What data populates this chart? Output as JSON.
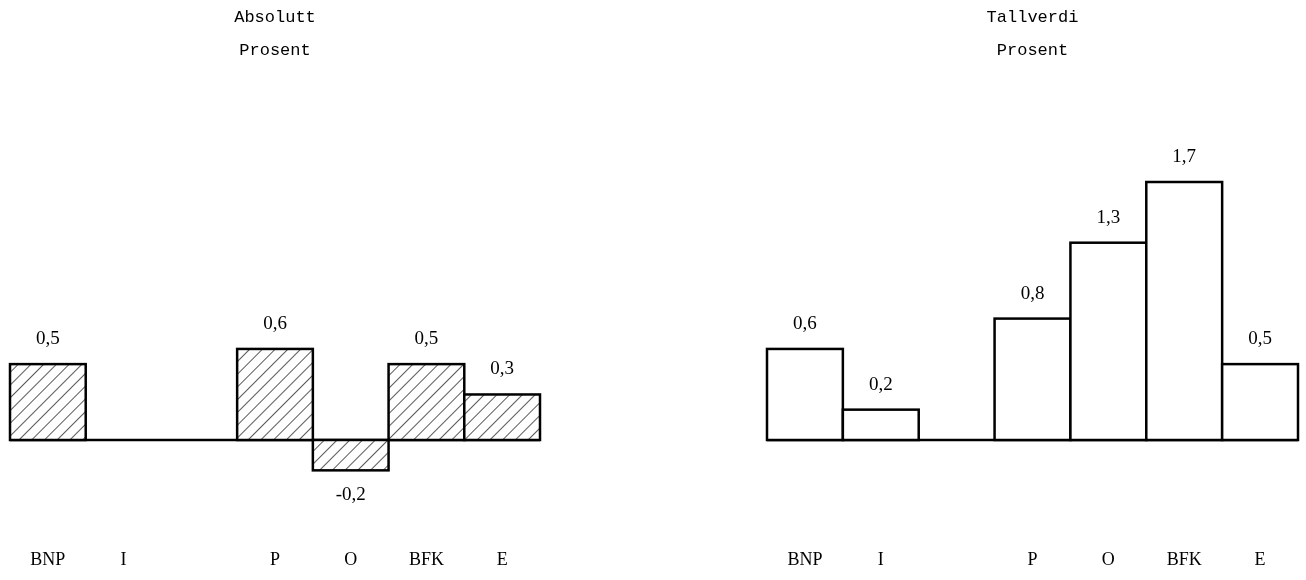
{
  "chart_data": [
    {
      "type": "bar",
      "title": "Absolutt",
      "subtitle": "Prosent",
      "categories": [
        "BNP",
        "I",
        null,
        "P",
        "O",
        "BFK",
        "E"
      ],
      "tick_labels": "x",
      "series": [
        {
          "color": "#000000",
          "values": [
            0.5,
            null,
            null,
            0.6,
            -0.2,
            0.5,
            0.3
          ],
          "value_labels": [
            "0,5",
            null,
            null,
            "0,6",
            "-0,2",
            "0,5",
            "0,3"
          ]
        }
      ]
    },
    {
      "type": "bar",
      "title": "Tallverdi",
      "subtitle": "Prosent",
      "categories": [
        "BNP",
        "I",
        null,
        "P",
        "O",
        "BFK",
        "E"
      ],
      "tick_labels": "x",
      "series": [
        {
          "color": "#000000",
          "values": [
            0.6,
            0.2,
            null,
            0.8,
            1.3,
            1.7,
            0.5
          ],
          "value_labels": [
            "0,6",
            "0,2",
            null,
            "0,8",
            "1,3",
            "1,7",
            "0,5"
          ]
        }
      ]
    }
  ]
}
